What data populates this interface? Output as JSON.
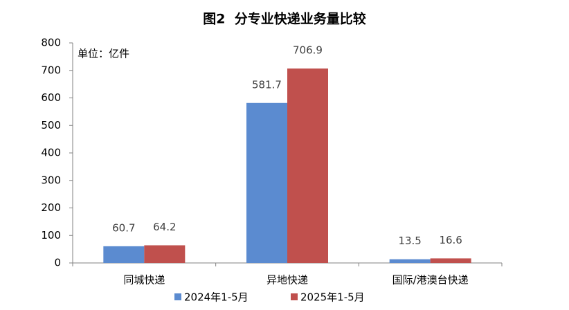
{
  "chart_data": {
    "type": "bar",
    "title": "图2  分专业快递业务量比较",
    "annotation": "单位：亿件",
    "categories": [
      "同城快递",
      "异地快递",
      "国际/港澳台快递"
    ],
    "series": [
      {
        "name": "2024年1-5月",
        "color": "#5b8bd0",
        "values": [
          60.7,
          581.7,
          13.5
        ]
      },
      {
        "name": "2025年1-5月",
        "color": "#c0504d",
        "values": [
          64.2,
          706.9,
          16.6
        ]
      }
    ],
    "ylim": [
      0,
      800
    ],
    "yticks": [
      0,
      100,
      200,
      300,
      400,
      500,
      600,
      700,
      800
    ],
    "grid": false,
    "legend": "bottom"
  }
}
